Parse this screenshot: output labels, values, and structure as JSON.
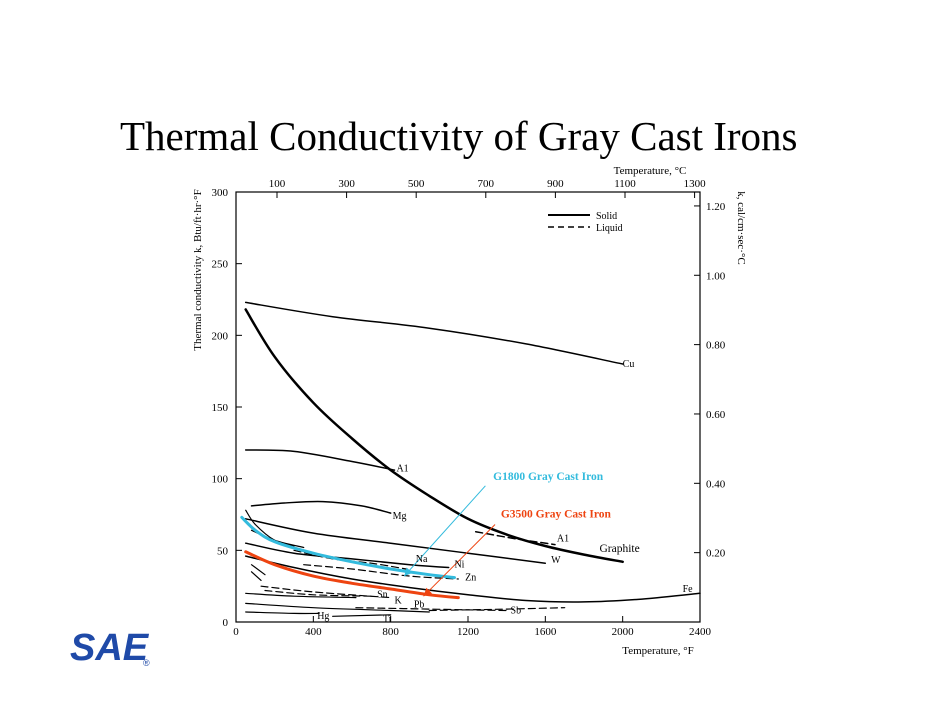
{
  "slide": {
    "title": "Thermal Conductivity of Gray Cast Irons"
  },
  "logo": {
    "text": "SAE",
    "registered": "®",
    "color": "#1f4aa8"
  },
  "chart_data": {
    "type": "line",
    "title": "Thermal Conductivity of Gray Cast Irons",
    "x_bottom": {
      "label": "Temperature, °F",
      "range": [
        0,
        2400
      ],
      "ticks": [
        0,
        400,
        800,
        1200,
        1600,
        2000,
        2400
      ]
    },
    "x_top": {
      "label": "Temperature, °C",
      "ticks": [
        100,
        300,
        500,
        700,
        900,
        1100,
        1300
      ]
    },
    "y_left": {
      "label": "Thermal conductivity k, Btu/ft·hr·°F",
      "range": [
        0,
        300
      ],
      "ticks": [
        0,
        50,
        100,
        150,
        200,
        250,
        300
      ]
    },
    "y_right": {
      "label": "k, cal/cm·sec·°C",
      "ticks": [
        "0.20",
        "0.40",
        "0.60",
        "0.80",
        "1.00",
        "1.20"
      ]
    },
    "legend": {
      "placement": "top-right",
      "entries": [
        {
          "label": "Solid",
          "style": "solid"
        },
        {
          "label": "Liquid",
          "style": "dashed"
        }
      ]
    },
    "highlight_colors": {
      "G1800": "#33bbdd",
      "G3500": "#ee4411"
    },
    "series": [
      {
        "name": "Cu",
        "style": "solid",
        "color": "#000000",
        "width": 1.5,
        "points": [
          [
            50,
            223
          ],
          [
            500,
            213
          ],
          [
            1000,
            205
          ],
          [
            1500,
            194
          ],
          [
            2000,
            180
          ]
        ]
      },
      {
        "name": "Graphite",
        "style": "solid",
        "color": "#000000",
        "width": 2.5,
        "points": [
          [
            50,
            218
          ],
          [
            200,
            185
          ],
          [
            400,
            153
          ],
          [
            600,
            128
          ],
          [
            800,
            106
          ],
          [
            1000,
            88
          ],
          [
            1200,
            72
          ],
          [
            1400,
            61
          ],
          [
            1600,
            53
          ],
          [
            1800,
            47
          ],
          [
            2000,
            42
          ]
        ]
      },
      {
        "name": "Al",
        "style": "solid",
        "color": "#000000",
        "width": 1.5,
        "points": [
          [
            50,
            120
          ],
          [
            300,
            119
          ],
          [
            600,
            112
          ],
          [
            820,
            106
          ]
        ]
      },
      {
        "name": "Al (liquid)",
        "style": "dashed",
        "color": "#000000",
        "width": 1.5,
        "points": [
          [
            1240,
            63
          ],
          [
            1450,
            58
          ],
          [
            1650,
            54
          ]
        ]
      },
      {
        "name": "Mg",
        "style": "solid",
        "color": "#000000",
        "width": 1.5,
        "points": [
          [
            80,
            81
          ],
          [
            250,
            83
          ],
          [
            450,
            84
          ],
          [
            650,
            81
          ],
          [
            800,
            76
          ]
        ]
      },
      {
        "name": "W",
        "style": "solid",
        "color": "#000000",
        "width": 1.5,
        "points": [
          [
            50,
            72
          ],
          [
            400,
            62
          ],
          [
            800,
            55
          ],
          [
            1200,
            48
          ],
          [
            1600,
            41
          ]
        ]
      },
      {
        "name": "Na",
        "style": "solid",
        "color": "#000000",
        "width": 1.2,
        "points": [
          [
            50,
            78
          ],
          [
            100,
            68
          ],
          [
            200,
            57
          ],
          [
            300,
            53
          ]
        ]
      },
      {
        "name": "Na (liquid)",
        "style": "dashed",
        "color": "#000000",
        "width": 1.2,
        "points": [
          [
            300,
            50
          ],
          [
            500,
            44
          ],
          [
            700,
            41
          ],
          [
            880,
            37
          ]
        ]
      },
      {
        "name": "Ni",
        "style": "solid",
        "color": "#000000",
        "width": 1.5,
        "points": [
          [
            50,
            55
          ],
          [
            300,
            48
          ],
          [
            600,
            44
          ],
          [
            900,
            40
          ],
          [
            1100,
            38
          ]
        ]
      },
      {
        "name": "Zn",
        "style": "solid",
        "color": "#000000",
        "width": 1.2,
        "points": [
          [
            80,
            64
          ],
          [
            200,
            57
          ],
          [
            350,
            52
          ]
        ]
      },
      {
        "name": "Zn (liquid)",
        "style": "dashed",
        "color": "#000000",
        "width": 1.2,
        "points": [
          [
            350,
            40
          ],
          [
            600,
            37
          ],
          [
            900,
            32
          ],
          [
            1150,
            30
          ]
        ]
      },
      {
        "name": "Fe",
        "style": "solid",
        "color": "#000000",
        "width": 1.5,
        "points": [
          [
            50,
            46
          ],
          [
            300,
            38
          ],
          [
            600,
            30
          ],
          [
            900,
            24
          ],
          [
            1200,
            19
          ],
          [
            1500,
            15
          ],
          [
            1800,
            14
          ],
          [
            2100,
            16
          ],
          [
            2400,
            20
          ]
        ]
      },
      {
        "name": "Sn",
        "style": "solid",
        "color": "#000000",
        "width": 1.2,
        "points": [
          [
            80,
            40
          ],
          [
            150,
            33
          ]
        ]
      },
      {
        "name": "Sn (liquid)",
        "style": "dashed",
        "color": "#000000",
        "width": 1.2,
        "points": [
          [
            150,
            22
          ],
          [
            400,
            19
          ],
          [
            700,
            18
          ]
        ]
      },
      {
        "name": "K",
        "style": "solid",
        "color": "#000000",
        "width": 1.2,
        "points": [
          [
            80,
            35
          ],
          [
            130,
            29
          ]
        ]
      },
      {
        "name": "K (liquid)",
        "style": "dashed",
        "color": "#000000",
        "width": 1.2,
        "points": [
          [
            130,
            25
          ],
          [
            400,
            21
          ],
          [
            800,
            17
          ]
        ]
      },
      {
        "name": "Pb",
        "style": "solid",
        "color": "#000000",
        "width": 1.2,
        "points": [
          [
            50,
            20
          ],
          [
            300,
            18
          ],
          [
            620,
            17
          ]
        ]
      },
      {
        "name": "Pb (liquid)",
        "style": "dashed",
        "color": "#000000",
        "width": 1.2,
        "points": [
          [
            620,
            10
          ],
          [
            1000,
            9
          ],
          [
            1400,
            8
          ]
        ]
      },
      {
        "name": "Sb",
        "style": "solid",
        "color": "#000000",
        "width": 1.2,
        "points": [
          [
            50,
            13
          ],
          [
            400,
            10
          ],
          [
            800,
            8
          ],
          [
            1000,
            7
          ]
        ]
      },
      {
        "name": "Sb (liquid)",
        "style": "dashed",
        "color": "#000000",
        "width": 1.2,
        "points": [
          [
            1000,
            8
          ],
          [
            1400,
            9
          ],
          [
            1700,
            10
          ]
        ]
      },
      {
        "name": "Hg",
        "style": "solid",
        "color": "#000000",
        "width": 1.2,
        "points": [
          [
            50,
            7
          ],
          [
            300,
            6
          ],
          [
            430,
            6
          ]
        ]
      },
      {
        "name": "Ti",
        "style": "solid",
        "color": "#000000",
        "width": 1.2,
        "points": [
          [
            500,
            4
          ],
          [
            800,
            5
          ]
        ]
      },
      {
        "name": "G1800 Gray Cast Iron",
        "style": "solid",
        "color": "#33bbdd",
        "width": 3,
        "points": [
          [
            30,
            73
          ],
          [
            100,
            64
          ],
          [
            200,
            56
          ],
          [
            400,
            48
          ],
          [
            600,
            42
          ],
          [
            800,
            37
          ],
          [
            1000,
            33
          ],
          [
            1130,
            31
          ]
        ]
      },
      {
        "name": "G3500 Gray Cast Iron",
        "style": "solid",
        "color": "#ee4411",
        "width": 3,
        "points": [
          [
            50,
            49
          ],
          [
            200,
            40
          ],
          [
            400,
            32
          ],
          [
            600,
            27
          ],
          [
            800,
            23
          ],
          [
            1000,
            19
          ],
          [
            1150,
            17
          ]
        ]
      }
    ],
    "annotations": [
      {
        "text": "Cu",
        "x": 2000,
        "y": 178
      },
      {
        "text": "Graphite",
        "x": 1880,
        "y": 49
      },
      {
        "text": "A1",
        "x": 830,
        "y": 105
      },
      {
        "text": "A1",
        "x": 1660,
        "y": 56
      },
      {
        "text": "Mg",
        "x": 810,
        "y": 72
      },
      {
        "text": "W",
        "x": 1630,
        "y": 41
      },
      {
        "text": "Na",
        "x": 930,
        "y": 42
      },
      {
        "text": "Ni",
        "x": 1130,
        "y": 38
      },
      {
        "text": "Zn",
        "x": 1185,
        "y": 29
      },
      {
        "text": "Fe",
        "x": 2310,
        "y": 21
      },
      {
        "text": "Sn",
        "x": 730,
        "y": 17
      },
      {
        "text": "K",
        "x": 820,
        "y": 13
      },
      {
        "text": "Pb",
        "x": 920,
        "y": 10
      },
      {
        "text": "Sb",
        "x": 1420,
        "y": 6
      },
      {
        "text": "Hg",
        "x": 420,
        "y": 2
      },
      {
        "text": "Ti",
        "x": 760,
        "y": 0
      },
      {
        "text": "G1800 Gray Cast Iron",
        "x": 1330,
        "y": 99,
        "color": "#33bbdd"
      },
      {
        "text": "G3500 Gray Cast Iron",
        "x": 1370,
        "y": 73,
        "color": "#ee4411"
      }
    ],
    "pointers": [
      {
        "color": "#33bbdd",
        "from": [
          1290,
          95
        ],
        "to": [
          870,
          32
        ]
      },
      {
        "color": "#ee4411",
        "from": [
          1340,
          68
        ],
        "to": [
          970,
          18
        ]
      }
    ]
  }
}
